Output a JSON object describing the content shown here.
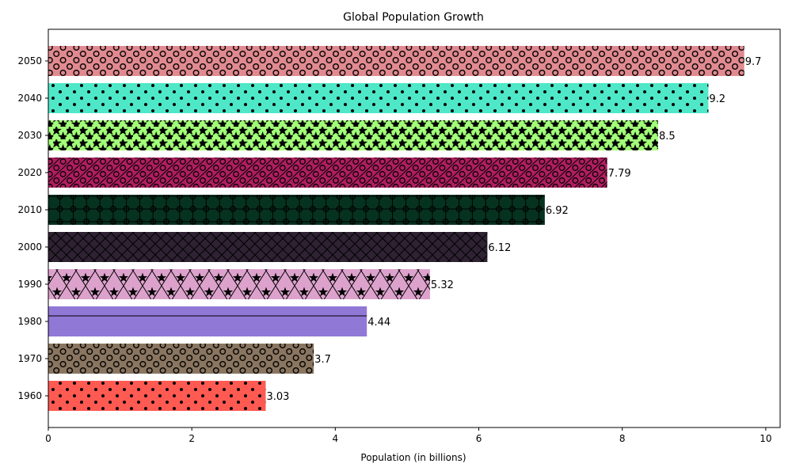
{
  "chart_data": {
    "type": "bar",
    "orientation": "horizontal",
    "title": "Global Population Growth",
    "xlabel": "Population (in billions)",
    "ylabel": "",
    "xlim": [
      0,
      10.2
    ],
    "xticks": [
      0,
      2,
      4,
      6,
      8,
      10
    ],
    "categories": [
      "1960",
      "1970",
      "1980",
      "1990",
      "2000",
      "2010",
      "2020",
      "2030",
      "2040",
      "2050"
    ],
    "values": [
      3.03,
      3.7,
      4.44,
      5.32,
      6.12,
      6.92,
      7.79,
      8.5,
      9.2,
      9.7
    ],
    "value_labels": [
      "3.03",
      "3.7",
      "4.44",
      "5.32",
      "6.12",
      "6.92",
      "7.79",
      "8.5",
      "9.2",
      "9.7"
    ],
    "colors": [
      "#ff5a52",
      "#8a7660",
      "#8f78d6",
      "#dca2cc",
      "#2e2233",
      "#06331f",
      "#b01e60",
      "#a2ff78",
      "#4ee8c8",
      "#e08a90"
    ],
    "patterns": [
      "dots",
      "rings",
      "hline",
      "stars-cross",
      "cross",
      "ring-grid",
      "ring-slash",
      "stars",
      "dots",
      "rings"
    ],
    "grid": false,
    "legend": "none"
  }
}
